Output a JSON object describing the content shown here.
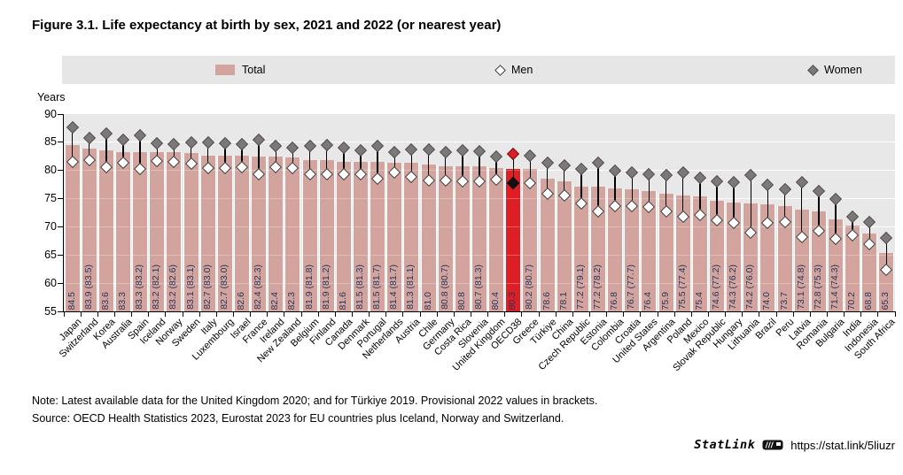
{
  "title": "Figure 3.1. Life expectancy at birth by sex, 2021 and 2022 (or nearest year)",
  "legend": {
    "total": "Total",
    "men": "Men",
    "women": "Women"
  },
  "axis": {
    "unit": "Years",
    "ticks": [
      90,
      85,
      80,
      75,
      70,
      65,
      60,
      55
    ]
  },
  "note": "Note: Latest available data for the United Kingdom 2020; and for Türkiye 2019. Provisional 2022 values in brackets.",
  "source": "Source: OECD Health Statistics 2023, Eurostat 2023 for EU countries plus Iceland, Norway and Switzerland.",
  "statlink": {
    "brand": "StatLink",
    "url": "https://stat.link/5liuzr"
  },
  "colors": {
    "bar": "#d3a49d",
    "highlight": "#dd1e25",
    "highlight_women": "#dd1e25",
    "highlight_women_edge": "#7a1013",
    "highlight_men": "#111111",
    "women_diamond": "#7c7878",
    "women_diamond_edge": "#565151",
    "men_diamond_edge": "#3f3b3b",
    "plot_bg": "#e9e8e8",
    "legend_bg": "#e6e6e6",
    "value_label": "#26355c"
  },
  "chart_data": {
    "type": "bar",
    "title": "Life expectancy at birth by sex, 2021 and 2022 (or nearest year)",
    "xlabel": "",
    "ylabel": "Years",
    "ylim": [
      55,
      90
    ],
    "grid": true,
    "legend_position": "top",
    "highlight_category": "OECD38",
    "categories": [
      "Japan",
      "Switzerland",
      "Korea",
      "Australia",
      "Spain",
      "Iceland",
      "Norway",
      "Sweden",
      "Italy",
      "Luxembourg",
      "Israel",
      "France",
      "Ireland",
      "New Zealand",
      "Belgium",
      "Finland",
      "Canada",
      "Denmark",
      "Portugal",
      "Netherlands",
      "Austria",
      "Chile",
      "Germany",
      "Costa Rica",
      "Slovenia",
      "United Kingdom",
      "OECD38",
      "Greece",
      "Türkiye",
      "China",
      "Czech Republic",
      "Estonia",
      "Colombia",
      "Croatia",
      "United States",
      "Argentina",
      "Poland",
      "Mexico",
      "Slovak Republic",
      "Hungary",
      "Lithuania",
      "Brazil",
      "Peru",
      "Latvia",
      "Romania",
      "Bulgaria",
      "India",
      "Indonesia",
      "South Africa"
    ],
    "series": [
      {
        "name": "Total",
        "type": "bar",
        "values": [
          84.5,
          83.9,
          83.6,
          83.3,
          83.3,
          83.2,
          83.2,
          83.1,
          82.7,
          82.7,
          82.6,
          82.4,
          82.4,
          82.3,
          81.9,
          81.9,
          81.6,
          81.5,
          81.5,
          81.4,
          81.3,
          81.0,
          80.8,
          80.8,
          80.7,
          80.4,
          80.3,
          80.2,
          78.6,
          78.1,
          77.2,
          77.2,
          76.8,
          76.7,
          76.4,
          75.9,
          75.5,
          75.4,
          74.6,
          74.3,
          74.2,
          74.0,
          73.7,
          73.1,
          72.8,
          71.4,
          70.2,
          68.8,
          65.3
        ],
        "labels": [
          "84.5",
          "83.9 (83.5)",
          "83.6",
          "83.3",
          "83.3 (83.2)",
          "83.2 (82.1)",
          "83.2 (82.6)",
          "83.1 (83.1)",
          "82.7 (83.0)",
          "82.7 (83.0)",
          "82.6",
          "82.4 (82.3)",
          "82.4",
          "82.3",
          "81.9 (81.8)",
          "81.9 (81.2)",
          "81.6",
          "81.5 (81.3)",
          "81.5 (81.7)",
          "81.4 (81.7)",
          "81.3 (81.1)",
          "81.0",
          "80.8 (80.7)",
          "80.8",
          "80.7 (81.3)",
          "80.4",
          "80.3",
          "80.2 (80.7)",
          "78.6",
          "78.1",
          "77.2 (79.1)",
          "77.2 (78.2)",
          "76.8",
          "76.7 (77.7)",
          "76.4",
          "75.9",
          "75.5 (77.4)",
          "75.4",
          "74.6 (77.2)",
          "74.3 (76.2)",
          "74.2 (76.0)",
          "74.0",
          "73.7",
          "73.1 (74.8)",
          "72.8 (75.3)",
          "71.4 (74.3)",
          "70.2",
          "68.8",
          "65.3"
        ]
      },
      {
        "name": "Men",
        "type": "scatter",
        "marker": "open-diamond",
        "values": [
          81.5,
          81.9,
          80.6,
          81.3,
          80.3,
          81.7,
          81.6,
          81.2,
          80.5,
          80.5,
          80.6,
          79.3,
          80.6,
          80.5,
          79.4,
          79.3,
          79.3,
          79.4,
          78.5,
          79.7,
          78.8,
          78.3,
          78.2,
          78.0,
          78.1,
          78.4,
          77.7,
          77.7,
          75.9,
          75.5,
          74.1,
          72.8,
          73.7,
          73.6,
          73.5,
          72.7,
          71.8,
          72.1,
          71.2,
          70.7,
          69.0,
          70.7,
          70.9,
          68.2,
          69.3,
          67.9,
          68.5,
          66.9,
          62.3
        ]
      },
      {
        "name": "Women",
        "type": "scatter",
        "marker": "filled-diamond",
        "values": [
          87.6,
          85.8,
          86.6,
          85.4,
          86.2,
          84.8,
          84.7,
          84.9,
          84.9,
          84.8,
          84.7,
          85.5,
          84.3,
          84.1,
          84.4,
          84.5,
          84.0,
          83.6,
          84.4,
          83.2,
          83.8,
          83.8,
          83.2,
          83.6,
          83.4,
          82.4,
          83.0,
          82.6,
          81.3,
          80.9,
          80.3,
          81.4,
          79.9,
          79.7,
          79.3,
          79.2,
          79.6,
          78.7,
          78.0,
          77.9,
          79.1,
          77.4,
          76.6,
          77.9,
          76.4,
          75.0,
          71.8,
          70.8,
          68.1
        ]
      }
    ]
  }
}
